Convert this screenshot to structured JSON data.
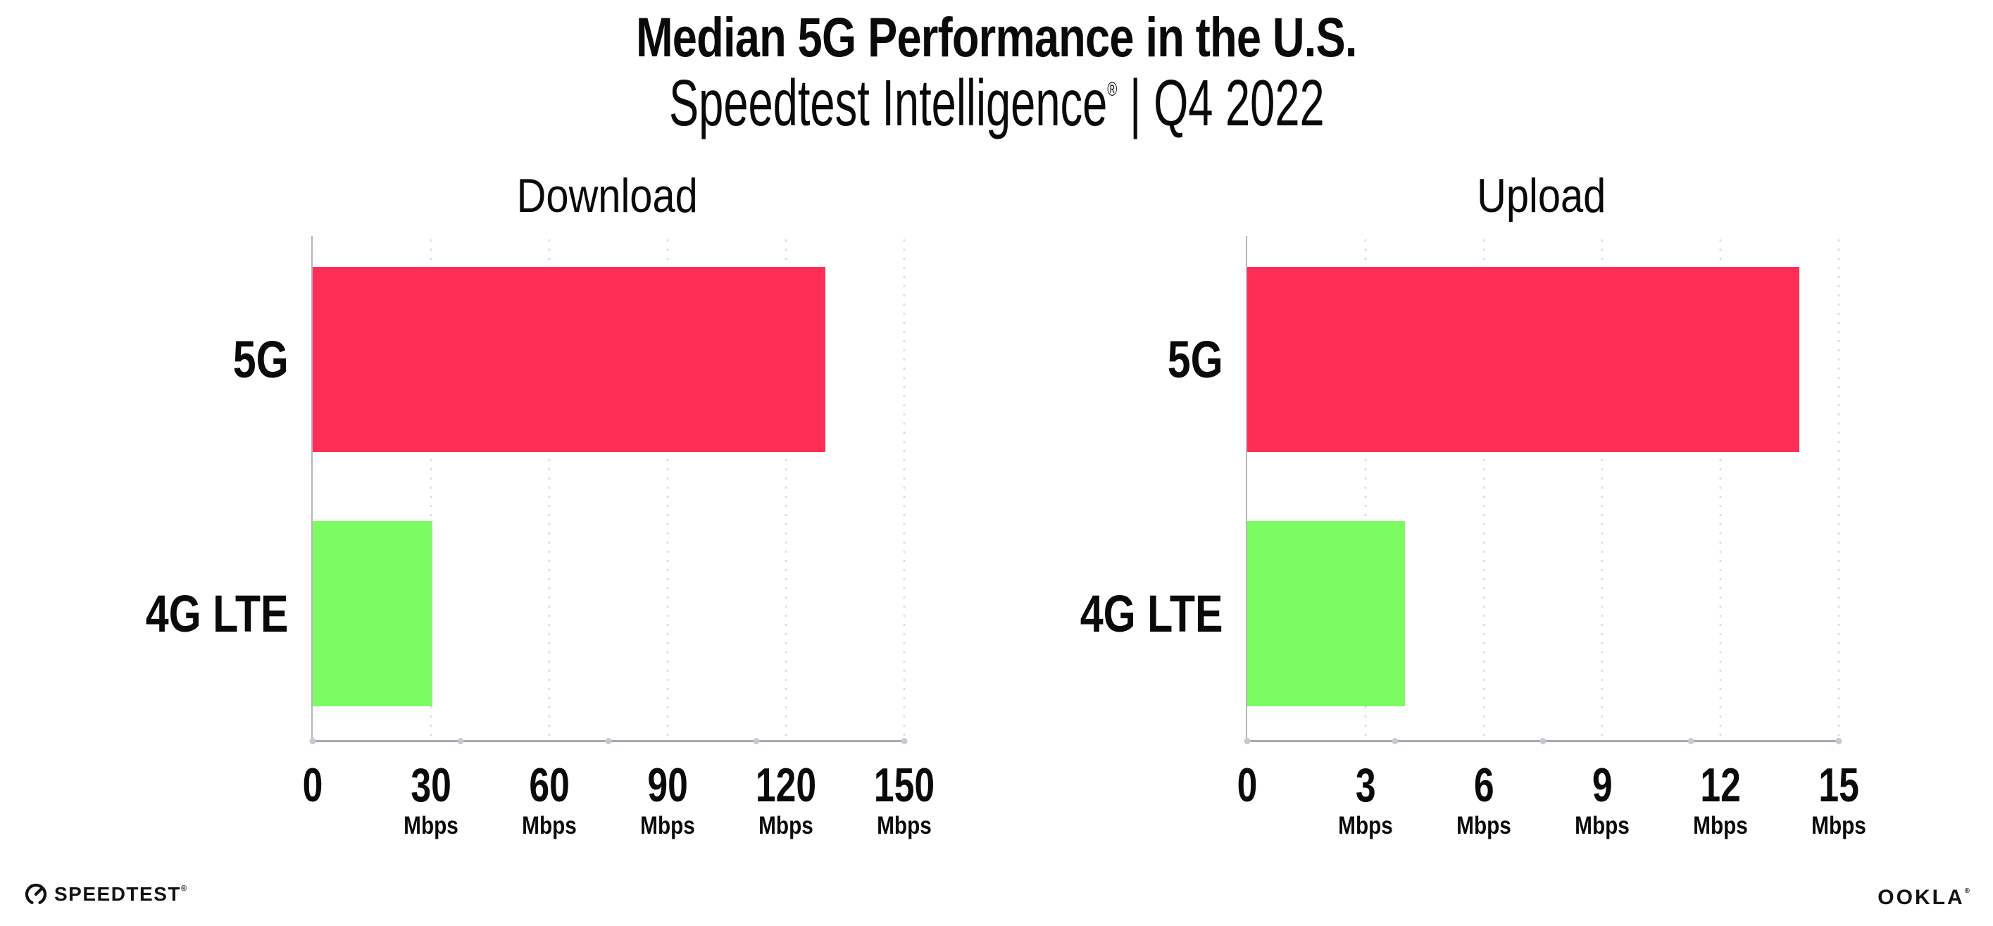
{
  "header": {
    "title": "Median 5G Performance in the U.S.",
    "subtitle_brand": "Speedtest Intelligence",
    "subtitle_reg": "®",
    "subtitle_sep": "|",
    "subtitle_period": "Q4 2022"
  },
  "chart_data": [
    {
      "id": "download",
      "type": "bar",
      "orientation": "horizontal",
      "title": "Download",
      "categories": [
        "5G",
        "4G LTE"
      ],
      "values": [
        130,
        30.4
      ],
      "unit": "Mbps",
      "xlim": [
        0,
        150
      ],
      "xticks": [
        0,
        30,
        60,
        90,
        120,
        150
      ],
      "xtick_unit": "Mbps",
      "bar_colors": [
        "#FF2E56",
        "#7DFB63"
      ],
      "grid": "dotted-vertical",
      "legend": "none"
    },
    {
      "id": "upload",
      "type": "bar",
      "orientation": "horizontal",
      "title": "Upload",
      "categories": [
        "5G",
        "4G LTE"
      ],
      "values": [
        14,
        4
      ],
      "unit": "Mbps",
      "xlim": [
        0,
        15
      ],
      "xticks": [
        0,
        3,
        6,
        9,
        12,
        15
      ],
      "xtick_unit": "Mbps",
      "bar_colors": [
        "#FF2E56",
        "#7DFB63"
      ],
      "grid": "dotted-vertical",
      "legend": "none"
    }
  ],
  "footer": {
    "speedtest_wordmark": "SPEEDTEST",
    "speedtest_reg": "®",
    "ookla_wordmark": "OOKLA",
    "ookla_reg": "®"
  },
  "colors": {
    "bar_5g": "#FF2E56",
    "bar_4g_lte": "#7DFB63",
    "axis_line": "#A8A8B0",
    "y_axis_line": "#B4B4BC",
    "grid_dot": "#DCDCE6",
    "quarter_dot": "#C8C8D5",
    "text": "#0A0A0C",
    "background": "#FFFFFF"
  }
}
